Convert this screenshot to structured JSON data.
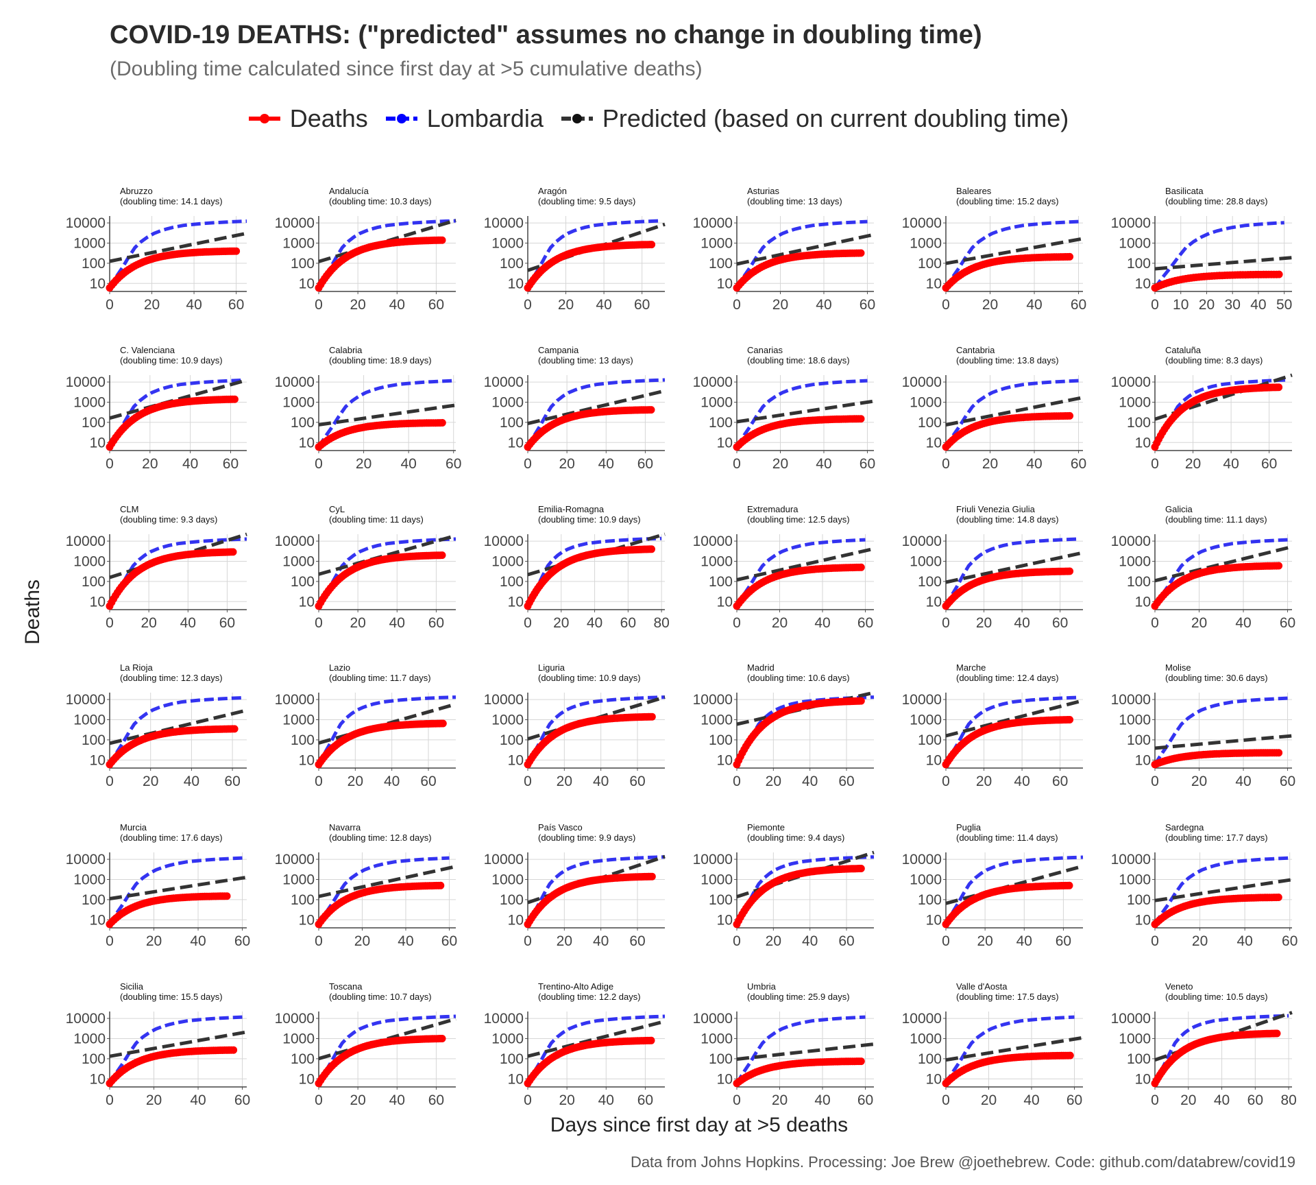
{
  "title": "COVID-19 DEATHS: (\"predicted\" assumes no change in doubling time)",
  "subtitle": "(Doubling time calculated since first day at >5 cumulative deaths)",
  "legend": [
    {
      "label": "Deaths",
      "color": "#ff0000"
    },
    {
      "label": "Lombardia",
      "color": "#0000ff"
    },
    {
      "label": "Predicted (based on current doubling time)",
      "color": "#333333"
    }
  ],
  "axis": {
    "xlabel": "Days since first day at >5 deaths",
    "ylabel": "Deaths",
    "y_scale": "log10",
    "y_ticks": [
      "10",
      "100",
      "1000",
      "10000"
    ]
  },
  "caption": "Data from Johns Hopkins. Processing: Joe Brew @joethebrew. Code: github.com/databrew/covid19",
  "chart_data": {
    "type": "line",
    "layout": "small-multiples 6x6",
    "lombardia_reference": {
      "name": "Lombardia",
      "days": [
        0,
        3,
        6,
        9,
        12,
        15,
        18,
        21,
        24,
        27,
        30,
        35,
        40,
        45,
        50,
        55,
        60,
        65,
        70,
        75,
        80
      ],
      "deaths": [
        6,
        20,
        60,
        200,
        600,
        1200,
        2000,
        3000,
        4000,
        5000,
        6000,
        7500,
        8500,
        9500,
        10300,
        11000,
        11700,
        12200,
        12700,
        13100,
        13500
      ]
    },
    "panels": [
      {
        "region": "Abruzzo",
        "subtitle": "(doubling time: 14.1 days)",
        "doubling_time": 14.1,
        "last_day": 60,
        "final_deaths": 400,
        "xmax": 65,
        "xticks": [
          "0",
          "20",
          "40",
          "60"
        ]
      },
      {
        "region": "Andalucía",
        "subtitle": "(doubling time: 10.3 days)",
        "doubling_time": 10.3,
        "last_day": 63,
        "final_deaths": 1400,
        "xmax": 70,
        "xticks": [
          "0",
          "20",
          "40",
          "60"
        ]
      },
      {
        "region": "Aragón",
        "subtitle": "(doubling time: 9.5 days)",
        "doubling_time": 9.5,
        "last_day": 65,
        "final_deaths": 850,
        "xmax": 72,
        "xticks": [
          "0",
          "20",
          "40",
          "60"
        ]
      },
      {
        "region": "Asturias",
        "subtitle": "(doubling time: 13 days)",
        "doubling_time": 13,
        "last_day": 57,
        "final_deaths": 320,
        "xmax": 63,
        "xticks": [
          "0",
          "20",
          "40",
          "60"
        ]
      },
      {
        "region": "Baleares",
        "subtitle": "(doubling time: 15.2 days)",
        "doubling_time": 15.2,
        "last_day": 56,
        "final_deaths": 210,
        "xmax": 62,
        "xticks": [
          "0",
          "20",
          "40",
          "60"
        ]
      },
      {
        "region": "Basilicata",
        "subtitle": "(doubling time: 28.8 days)",
        "doubling_time": 28.8,
        "last_day": 48,
        "final_deaths": 28,
        "xmax": 53,
        "xticks": [
          "0",
          "10",
          "20",
          "30",
          "40",
          "50"
        ]
      },
      {
        "region": "C. Valenciana",
        "subtitle": "(doubling time: 10.9 days)",
        "doubling_time": 10.9,
        "last_day": 62,
        "final_deaths": 1400,
        "xmax": 68,
        "xticks": [
          "0",
          "20",
          "40",
          "60"
        ]
      },
      {
        "region": "Calabria",
        "subtitle": "(doubling time: 18.9 days)",
        "doubling_time": 18.9,
        "last_day": 55,
        "final_deaths": 95,
        "xmax": 61,
        "xticks": [
          "0",
          "20",
          "40",
          "60"
        ]
      },
      {
        "region": "Campania",
        "subtitle": "(doubling time: 13 days)",
        "doubling_time": 13,
        "last_day": 63,
        "final_deaths": 420,
        "xmax": 70,
        "xticks": [
          "0",
          "20",
          "40",
          "60"
        ]
      },
      {
        "region": "Canarias",
        "subtitle": "(doubling time: 18.6 days)",
        "doubling_time": 18.6,
        "last_day": 57,
        "final_deaths": 150,
        "xmax": 63,
        "xticks": [
          "0",
          "20",
          "40",
          "60"
        ]
      },
      {
        "region": "Cantabria",
        "subtitle": "(doubling time: 13.8 days)",
        "doubling_time": 13.8,
        "last_day": 56,
        "final_deaths": 210,
        "xmax": 62,
        "xticks": [
          "0",
          "20",
          "40",
          "60"
        ]
      },
      {
        "region": "Cataluña",
        "subtitle": "(doubling time: 8.3 days)",
        "doubling_time": 8.3,
        "last_day": 65,
        "final_deaths": 5500,
        "xmax": 72,
        "xticks": [
          "0",
          "20",
          "40",
          "60"
        ]
      },
      {
        "region": "CLM",
        "subtitle": "(doubling time: 9.3 days)",
        "doubling_time": 9.3,
        "last_day": 63,
        "final_deaths": 2900,
        "xmax": 70,
        "xticks": [
          "0",
          "20",
          "40",
          "60"
        ]
      },
      {
        "region": "CyL",
        "subtitle": "(doubling time: 11 days)",
        "doubling_time": 11,
        "last_day": 63,
        "final_deaths": 2000,
        "xmax": 70,
        "xticks": [
          "0",
          "20",
          "40",
          "60"
        ]
      },
      {
        "region": "Emilia-Romagna",
        "subtitle": "(doubling time: 10.9 days)",
        "doubling_time": 10.9,
        "last_day": 74,
        "final_deaths": 4000,
        "xmax": 82,
        "xticks": [
          "0",
          "20",
          "40",
          "60",
          "80"
        ]
      },
      {
        "region": "Extremadura",
        "subtitle": "(doubling time: 12.5 days)",
        "doubling_time": 12.5,
        "last_day": 58,
        "final_deaths": 500,
        "xmax": 64,
        "xticks": [
          "0",
          "20",
          "40",
          "60"
        ]
      },
      {
        "region": "Friuli Venezia Giulia",
        "subtitle": "(doubling time: 14.8 days)",
        "doubling_time": 14.8,
        "last_day": 65,
        "final_deaths": 320,
        "xmax": 72,
        "xticks": [
          "0",
          "20",
          "40",
          "60"
        ]
      },
      {
        "region": "Galicia",
        "subtitle": "(doubling time: 11.1 days)",
        "doubling_time": 11.1,
        "last_day": 56,
        "final_deaths": 600,
        "xmax": 62,
        "xticks": [
          "0",
          "20",
          "40",
          "60"
        ]
      },
      {
        "region": "La Rioja",
        "subtitle": "(doubling time: 12.3 days)",
        "doubling_time": 12.3,
        "last_day": 61,
        "final_deaths": 350,
        "xmax": 67,
        "xticks": [
          "0",
          "20",
          "40",
          "60"
        ]
      },
      {
        "region": "Lazio",
        "subtitle": "(doubling time: 11.7 days)",
        "doubling_time": 11.7,
        "last_day": 68,
        "final_deaths": 650,
        "xmax": 75,
        "xticks": [
          "0",
          "20",
          "40",
          "60"
        ]
      },
      {
        "region": "Liguria",
        "subtitle": "(doubling time: 10.9 days)",
        "doubling_time": 10.9,
        "last_day": 68,
        "final_deaths": 1400,
        "xmax": 75,
        "xticks": [
          "0",
          "20",
          "40",
          "60"
        ]
      },
      {
        "region": "Madrid",
        "subtitle": "(doubling time: 10.6 days)",
        "doubling_time": 10.6,
        "last_day": 68,
        "final_deaths": 8500,
        "xmax": 75,
        "xticks": [
          "0",
          "20",
          "40",
          "60"
        ]
      },
      {
        "region": "Marche",
        "subtitle": "(doubling time: 12.4 days)",
        "doubling_time": 12.4,
        "last_day": 65,
        "final_deaths": 1000,
        "xmax": 72,
        "xticks": [
          "0",
          "20",
          "40",
          "60"
        ]
      },
      {
        "region": "Molise",
        "subtitle": "(doubling time: 30.6 days)",
        "doubling_time": 30.6,
        "last_day": 56,
        "final_deaths": 23,
        "xmax": 62,
        "xticks": [
          "0",
          "20",
          "40",
          "60"
        ]
      },
      {
        "region": "Murcia",
        "subtitle": "(doubling time: 17.6 days)",
        "doubling_time": 17.6,
        "last_day": 53,
        "final_deaths": 150,
        "xmax": 62,
        "xticks": [
          "0",
          "20",
          "40",
          "60"
        ]
      },
      {
        "region": "Navarra",
        "subtitle": "(doubling time: 12.8 days)",
        "doubling_time": 12.8,
        "last_day": 56,
        "final_deaths": 500,
        "xmax": 63,
        "xticks": [
          "0",
          "20",
          "40",
          "60"
        ]
      },
      {
        "region": "País Vasco",
        "subtitle": "(doubling time: 9.9 days)",
        "doubling_time": 9.9,
        "last_day": 68,
        "final_deaths": 1400,
        "xmax": 75,
        "xticks": [
          "0",
          "20",
          "40",
          "60"
        ]
      },
      {
        "region": "Piemonte",
        "subtitle": "(doubling time: 9.4 days)",
        "doubling_time": 9.4,
        "last_day": 68,
        "final_deaths": 3500,
        "xmax": 75,
        "xticks": [
          "0",
          "20",
          "40",
          "60"
        ]
      },
      {
        "region": "Puglia",
        "subtitle": "(doubling time: 11.4 days)",
        "doubling_time": 11.4,
        "last_day": 63,
        "final_deaths": 500,
        "xmax": 70,
        "xticks": [
          "0",
          "20",
          "40",
          "60"
        ]
      },
      {
        "region": "Sardegna",
        "subtitle": "(doubling time: 17.7 days)",
        "doubling_time": 17.7,
        "last_day": 55,
        "final_deaths": 130,
        "xmax": 61,
        "xticks": [
          "0",
          "20",
          "40",
          "60"
        ]
      },
      {
        "region": "Sicilia",
        "subtitle": "(doubling time: 15.5 days)",
        "doubling_time": 15.5,
        "last_day": 56,
        "final_deaths": 270,
        "xmax": 62,
        "xticks": [
          "0",
          "20",
          "40",
          "60"
        ]
      },
      {
        "region": "Toscana",
        "subtitle": "(doubling time: 10.7 days)",
        "doubling_time": 10.7,
        "last_day": 63,
        "final_deaths": 1000,
        "xmax": 70,
        "xticks": [
          "0",
          "20",
          "40",
          "60"
        ]
      },
      {
        "region": "Trentino-Alto Adige",
        "subtitle": "(doubling time: 12.2 days)",
        "doubling_time": 12.2,
        "last_day": 63,
        "final_deaths": 800,
        "xmax": 70,
        "xticks": [
          "0",
          "20",
          "40",
          "60"
        ]
      },
      {
        "region": "Umbria",
        "subtitle": "(doubling time: 25.9 days)",
        "doubling_time": 25.9,
        "last_day": 58,
        "final_deaths": 75,
        "xmax": 64,
        "xticks": [
          "0",
          "20",
          "40",
          "60"
        ]
      },
      {
        "region": "Valle d'Aosta",
        "subtitle": "(doubling time: 17.5 days)",
        "doubling_time": 17.5,
        "last_day": 58,
        "final_deaths": 145,
        "xmax": 64,
        "xticks": [
          "0",
          "20",
          "40",
          "60"
        ]
      },
      {
        "region": "Veneto",
        "subtitle": "(doubling time: 10.5 days)",
        "doubling_time": 10.5,
        "last_day": 73,
        "final_deaths": 1800,
        "xmax": 82,
        "xticks": [
          "0",
          "20",
          "40",
          "60",
          "80"
        ]
      }
    ]
  }
}
